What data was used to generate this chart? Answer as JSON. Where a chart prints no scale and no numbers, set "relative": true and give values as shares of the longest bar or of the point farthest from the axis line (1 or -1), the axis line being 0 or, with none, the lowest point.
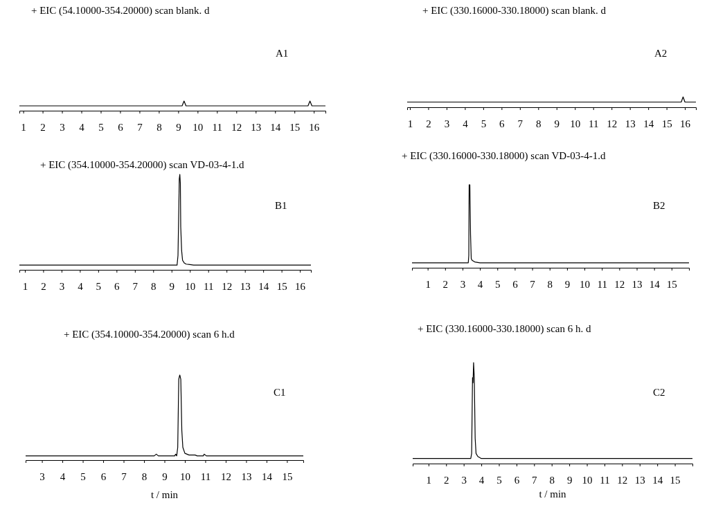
{
  "chart_data": [
    {
      "type": "line",
      "title": "+ EIC (54.10000-354.20000) scan blank. d",
      "annotations": [
        "A1"
      ],
      "relative": true,
      "xlim": [
        0.8,
        16.6
      ],
      "xticks": [
        1,
        2,
        3,
        4,
        5,
        6,
        7,
        8,
        9,
        10,
        11,
        12,
        13,
        14,
        15,
        16
      ],
      "series": [
        {
          "color": "#000000",
          "x": [
            0.8,
            9.2,
            9.3,
            9.4,
            15.7,
            15.8,
            15.9,
            16.6
          ],
          "values": [
            0.5,
            0.5,
            1,
            0.5,
            0.5,
            1,
            0.5,
            0.5
          ]
        }
      ]
    },
    {
      "type": "line",
      "title": "+ EIC (330.16000-330.18000) scan blank. d",
      "annotations": [
        "A2"
      ],
      "relative": true,
      "xlim": [
        0.85,
        16.6
      ],
      "xticks": [
        1,
        2,
        3,
        4,
        5,
        6,
        7,
        8,
        9,
        10,
        11,
        12,
        13,
        14,
        15,
        16
      ],
      "series": [
        {
          "color": "#000000",
          "x": [
            0.85,
            15.8,
            15.9,
            16.0,
            16.6
          ],
          "values": [
            0.5,
            0.5,
            1,
            0.5,
            0.5
          ]
        }
      ]
    },
    {
      "type": "line",
      "title": "+ EIC (354.10000-354.20000) scan VD-03-4-1.d",
      "annotations": [
        "B1"
      ],
      "relative": true,
      "xlim": [
        0.7,
        16.6
      ],
      "xticks": [
        1,
        2,
        3,
        4,
        5,
        6,
        7,
        8,
        9,
        10,
        11,
        12,
        13,
        14,
        15,
        16
      ],
      "series": [
        {
          "color": "#000000",
          "x": [
            0.7,
            9.3,
            9.35,
            9.4,
            9.42,
            9.45,
            9.48,
            9.5,
            9.55,
            9.6,
            9.7,
            9.8,
            10.0,
            10.2,
            16.6
          ],
          "values": [
            0.05,
            0.05,
            0.15,
            0.7,
            0.95,
            1,
            0.9,
            0.45,
            0.2,
            0.1,
            0.07,
            0.06,
            0.055,
            0.05,
            0.05
          ]
        }
      ]
    },
    {
      "type": "line",
      "title": "+ EIC (330.16000-330.18000) scan VD-03-4-1.d",
      "annotations": [
        "B2"
      ],
      "relative": true,
      "xlim": [
        0.1,
        16
      ],
      "xticks": [
        1,
        2,
        3,
        4,
        5,
        6,
        7,
        8,
        9,
        10,
        11,
        12,
        13,
        14,
        15
      ],
      "series": [
        {
          "color": "#000000",
          "x": [
            0.1,
            3.33,
            3.36,
            3.38,
            3.42,
            3.46,
            3.5,
            3.55,
            3.7,
            4.0,
            16
          ],
          "values": [
            0.06,
            0.06,
            0.15,
            1,
            1,
            0.4,
            0.11,
            0.09,
            0.07,
            0.06,
            0.06
          ]
        }
      ]
    },
    {
      "type": "line",
      "title": "+ EIC (354.10000-354.20000) scan 6 h.d",
      "annotations": [
        "C1"
      ],
      "xlabel": "t / min",
      "relative": true,
      "xlim": [
        2.2,
        15.8
      ],
      "xticks": [
        3,
        4,
        5,
        6,
        7,
        8,
        9,
        10,
        11,
        12,
        13,
        14,
        15
      ],
      "series": [
        {
          "color": "#000000",
          "x": [
            2.2,
            8.5,
            8.6,
            8.7,
            9.5,
            9.55,
            9.6,
            9.65,
            9.7,
            9.75,
            9.8,
            9.85,
            9.9,
            10.0,
            10.2,
            10.5,
            10.6,
            10.9,
            10.95,
            11.05,
            15.8
          ],
          "values": [
            0.05,
            0.05,
            0.07,
            0.05,
            0.05,
            0.07,
            0.05,
            0.15,
            0.95,
            1,
            0.95,
            0.35,
            0.15,
            0.08,
            0.06,
            0.06,
            0.05,
            0.05,
            0.07,
            0.05,
            0.05
          ]
        }
      ]
    },
    {
      "type": "line",
      "title": "+ EIC (330.16000-330.18000) scan 6 h. d",
      "annotations": [
        "C2"
      ],
      "xlabel": "t / min",
      "relative": true,
      "xlim": [
        0.1,
        16
      ],
      "xticks": [
        1,
        2,
        3,
        4,
        5,
        6,
        7,
        8,
        9,
        10,
        11,
        12,
        13,
        14,
        15
      ],
      "series": [
        {
          "color": "#000000",
          "x": [
            0.1,
            3.4,
            3.45,
            3.5,
            3.53,
            3.56,
            3.6,
            3.65,
            3.7,
            3.8,
            4.0,
            16
          ],
          "values": [
            0.05,
            0.05,
            0.1,
            0.85,
            0.8,
            1,
            0.85,
            0.25,
            0.1,
            0.07,
            0.05,
            0.05
          ]
        }
      ]
    }
  ]
}
